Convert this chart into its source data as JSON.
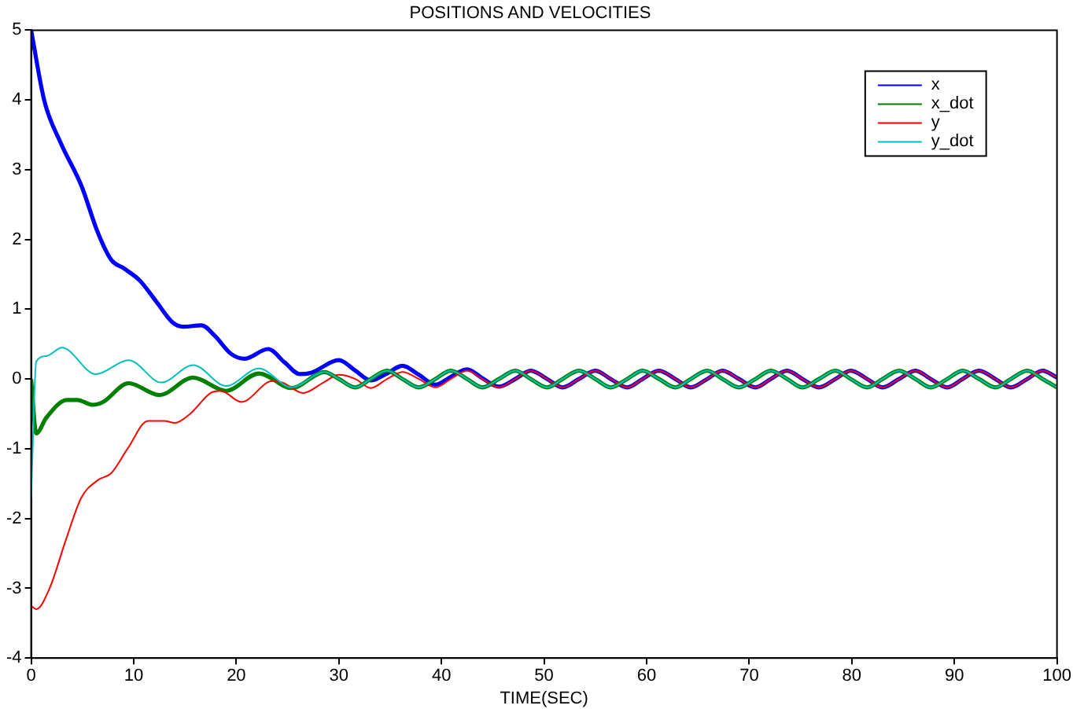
{
  "chart_data": {
    "type": "line",
    "title": "POSITIONS AND VELOCITIES",
    "xlabel": "TIME(SEC)",
    "xlim": [
      0,
      100
    ],
    "xticks": [
      0,
      10,
      20,
      30,
      40,
      50,
      60,
      70,
      80,
      90,
      100
    ],
    "ylim": [
      -4,
      5
    ],
    "yticks": [
      -4,
      -3,
      -2,
      -1,
      0,
      1,
      2,
      3,
      4,
      5
    ],
    "grid": false,
    "legend": "top right",
    "marker": "none",
    "line_style": "solid",
    "series": [
      {
        "name": "x",
        "color": "#0000ff",
        "x": [
          0,
          1.3,
          2.9,
          4.9,
          6.5,
          7.8,
          9.1,
          10.6,
          12.2,
          13.8,
          14.8,
          16.6,
          17.9,
          19.5,
          20.8,
          23.1,
          24.7,
          26.2,
          27.3,
          30.0,
          31.6,
          33.1,
          34.7,
          36.2,
          37.8,
          39.4,
          40.9,
          42.5,
          44.0,
          45.6,
          47.2,
          48.7,
          50.3,
          51.8,
          53.4,
          55.0,
          56.5,
          58.1,
          59.6,
          61.2,
          62.8,
          64.3,
          65.9,
          67.4,
          69.0,
          70.6,
          72.1,
          73.7,
          75.2,
          76.8,
          78.4,
          79.9,
          81.5,
          83.0,
          84.6,
          86.2,
          87.7,
          89.3,
          90.8,
          92.4,
          94.0,
          95.5,
          97.1,
          98.6,
          100
        ],
        "values": [
          5,
          3.98,
          3.38,
          2.77,
          2.1,
          1.71,
          1.58,
          1.41,
          1.11,
          0.81,
          0.75,
          0.77,
          0.62,
          0.36,
          0.29,
          0.43,
          0.24,
          0.07,
          0.09,
          0.27,
          0.12,
          -0.02,
          0.08,
          0.19,
          0.06,
          -0.08,
          0.03,
          0.14,
          0.01,
          -0.11,
          0,
          0.12,
          0,
          -0.12,
          0,
          0.12,
          0,
          -0.12,
          0,
          0.12,
          0,
          -0.12,
          0,
          0.12,
          0,
          -0.12,
          0,
          0.12,
          0,
          -0.12,
          0,
          0.12,
          0,
          -0.12,
          0,
          0.12,
          0,
          -0.12,
          0,
          0.12,
          0,
          -0.12,
          0,
          0.12,
          0.02
        ]
      },
      {
        "name": "x_dot",
        "color": "#008000",
        "x": [
          0,
          0.5,
          1.5,
          3.5,
          4.5,
          6.0,
          7.0,
          9.5,
          12.5,
          15.8,
          19.0,
          22.2,
          25.4,
          28.6,
          30.0,
          31.6,
          33.1,
          34.7,
          36.2,
          37.8,
          39.4,
          40.9,
          42.5,
          44.0,
          45.6,
          47.2,
          48.7,
          50.3,
          51.8,
          53.4,
          55.0,
          56.5,
          58.1,
          59.6,
          61.2,
          62.8,
          64.3,
          65.9,
          67.4,
          69.0,
          70.6,
          72.1,
          73.7,
          75.2,
          76.8,
          78.4,
          79.9,
          81.5,
          83.0,
          84.6,
          86.2,
          87.7,
          89.3,
          90.8,
          92.4,
          94.0,
          95.5,
          97.1,
          98.6,
          100
        ],
        "values": [
          0,
          -0.78,
          -0.55,
          -0.3,
          -0.3,
          -0.37,
          -0.33,
          -0.06,
          -0.23,
          0.02,
          -0.17,
          0.08,
          -0.13,
          0.1,
          0,
          -0.12,
          0,
          0.12,
          0,
          -0.12,
          0,
          0.12,
          0,
          -0.12,
          0,
          0.12,
          0,
          -0.12,
          0,
          0.12,
          0,
          -0.12,
          0,
          0.12,
          0,
          -0.12,
          0,
          0.12,
          0,
          -0.12,
          0,
          0.12,
          0,
          -0.12,
          0,
          0.12,
          0,
          -0.12,
          0,
          0.12,
          0,
          -0.12,
          0,
          0.12,
          0,
          -0.12,
          0,
          0.12,
          0,
          -0.12
        ]
      },
      {
        "name": "y",
        "color": "#ff0000",
        "x": [
          0,
          0.5,
          1.8,
          3.4,
          4.9,
          6.5,
          7.8,
          9.4,
          11.4,
          13.0,
          14.0,
          15.5,
          17.5,
          18.5,
          20.5,
          23.5,
          24.5,
          26.5,
          28.5,
          30.0,
          31.6,
          33.1,
          34.7,
          36.2,
          37.8,
          39.4,
          40.9,
          42.5,
          44.0,
          45.6,
          47.2,
          48.7,
          50.3,
          51.8,
          53.4,
          55.0,
          56.5,
          58.1,
          59.6,
          61.2,
          62.8,
          64.3,
          65.9,
          67.4,
          69.0,
          70.6,
          72.1,
          73.7,
          75.2,
          76.8,
          78.4,
          79.9,
          81.5,
          83.0,
          84.6,
          86.2,
          87.7,
          89.3,
          90.8,
          92.4,
          94.0,
          95.5,
          97.1,
          98.6,
          100
        ],
        "values": [
          -3.25,
          -3.3,
          -3.0,
          -2.3,
          -1.7,
          -1.45,
          -1.35,
          -1.0,
          -0.6,
          -0.6,
          -0.63,
          -0.5,
          -0.2,
          -0.17,
          -0.33,
          -0.03,
          -0.05,
          -0.2,
          -0.05,
          0.06,
          0,
          -0.13,
          0,
          0.1,
          0,
          -0.12,
          0,
          0.12,
          0,
          -0.12,
          0,
          0.12,
          0,
          -0.12,
          0,
          0.12,
          0,
          -0.12,
          0,
          0.12,
          0,
          -0.12,
          0,
          0.12,
          0,
          -0.12,
          0,
          0.12,
          0,
          -0.12,
          0,
          0.12,
          0,
          -0.12,
          0,
          0.12,
          0,
          -0.12,
          0,
          0.12,
          0,
          -0.12,
          0,
          0.12,
          0.02
        ]
      },
      {
        "name": "y_dot",
        "color": "#00bfbf",
        "x": [
          0,
          0.5,
          1.5,
          3.0,
          6.3,
          9.5,
          12.7,
          15.8,
          19.0,
          22.2,
          25.4,
          28.6,
          30.0,
          31.6,
          33.1,
          34.7,
          36.2,
          37.8,
          39.4,
          40.9,
          42.5,
          44.0,
          45.6,
          47.2,
          48.7,
          50.3,
          51.8,
          53.4,
          55.0,
          56.5,
          58.1,
          59.6,
          61.2,
          62.8,
          64.3,
          65.9,
          67.4,
          69.0,
          70.6,
          72.1,
          73.7,
          75.2,
          76.8,
          78.4,
          79.9,
          81.5,
          83.0,
          84.6,
          86.2,
          87.7,
          89.3,
          90.8,
          92.4,
          94.0,
          95.5,
          97.1,
          98.6,
          100
        ],
        "values": [
          -1.7,
          0.25,
          0.33,
          0.45,
          0.07,
          0.27,
          -0.05,
          0.2,
          -0.1,
          0.15,
          -0.12,
          0.1,
          0,
          -0.12,
          0,
          0.12,
          0,
          -0.12,
          0,
          0.12,
          0,
          -0.12,
          0,
          0.12,
          0,
          -0.12,
          0,
          0.12,
          0,
          -0.12,
          0,
          0.12,
          0,
          -0.12,
          0,
          0.12,
          0,
          -0.12,
          0,
          0.12,
          0,
          -0.12,
          0,
          0.12,
          0,
          -0.12,
          0,
          0.12,
          0,
          -0.12,
          0,
          0.12,
          0,
          -0.12,
          0,
          0.12,
          0,
          -0.12
        ]
      }
    ]
  }
}
